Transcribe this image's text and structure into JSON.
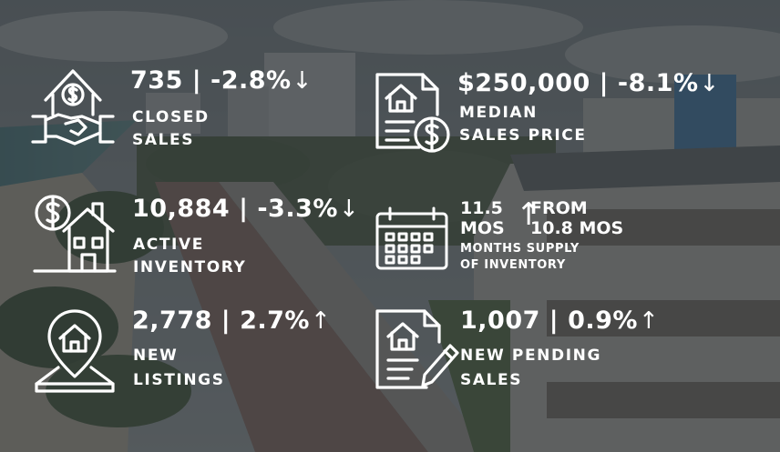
{
  "colors": {
    "text": "#ffffff",
    "overlay": "#2e3234"
  },
  "closed_sales": {
    "icon": "house-handshake-dollar-icon",
    "value": "735 | -2.8%",
    "trend": "down",
    "arrow": "↓",
    "label_line1": "CLOSED",
    "label_line2": "SALES"
  },
  "median_sales_price": {
    "icon": "house-document-dollar-icon",
    "value": "$250,000 | -8.1%",
    "trend": "down",
    "arrow": "↓",
    "label_line1": "MEDIAN",
    "label_line2": "SALES PRICE"
  },
  "active_inventory": {
    "icon": "house-dollar-icon",
    "value": "10,884 | -3.3%",
    "trend": "down",
    "arrow": "↓",
    "label_line1": "ACTIVE",
    "label_line2": "INVENTORY"
  },
  "months_supply": {
    "icon": "calendar-icon",
    "current_line1": "11.5",
    "current_line2": "MOS",
    "arrow": "↑",
    "trend": "up",
    "previous_line1": "FROM",
    "previous_line2": "10.8 MOS",
    "label_line1": "MONTHS SUPPLY",
    "label_line2": "OF INVENTORY"
  },
  "new_listings": {
    "icon": "location-pin-house-icon",
    "value": "2,778 | 2.7%",
    "trend": "up",
    "arrow": "↑",
    "label_line1": "NEW",
    "label_line2": "LISTINGS"
  },
  "new_pending_sales": {
    "icon": "house-document-pen-icon",
    "value": "1,007 | 0.9%",
    "trend": "up",
    "arrow": "↑",
    "label_line1": "NEW PENDING",
    "label_line2": "SALES"
  }
}
